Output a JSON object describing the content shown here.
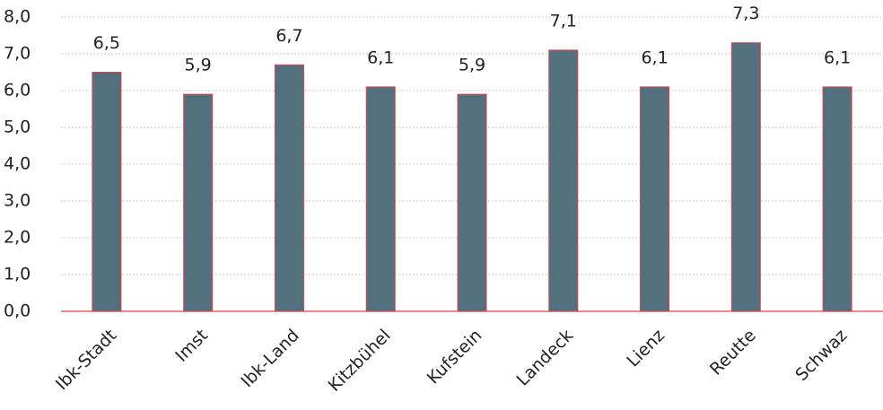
{
  "chart_data": {
    "type": "bar",
    "categories": [
      "Ibk-Stadt",
      "Imst",
      "Ibk-Land",
      "Kitzbühel",
      "Kufstein",
      "Landeck",
      "Lienz",
      "Reutte",
      "Schwaz"
    ],
    "values": [
      6.5,
      5.9,
      6.7,
      6.1,
      5.9,
      7.1,
      6.1,
      7.3,
      6.1
    ],
    "value_labels": [
      "6,5",
      "5,9",
      "6,7",
      "6,1",
      "5,9",
      "7,1",
      "6,1",
      "7,3",
      "6,1"
    ],
    "color": "#52707e",
    "edge_color": "#e0404a",
    "ylim": [
      0,
      8
    ],
    "yticks": [
      {
        "value": 0,
        "label": "0,0"
      },
      {
        "value": 1,
        "label": "1,0"
      },
      {
        "value": 2,
        "label": "2,0"
      },
      {
        "value": 3,
        "label": "3,0"
      },
      {
        "value": 4,
        "label": "4,0"
      },
      {
        "value": 5,
        "label": "5,0"
      },
      {
        "value": 6,
        "label": "6,0"
      },
      {
        "value": 7,
        "label": "7,0"
      },
      {
        "value": 8,
        "label": "8,0"
      }
    ],
    "grid": true
  }
}
